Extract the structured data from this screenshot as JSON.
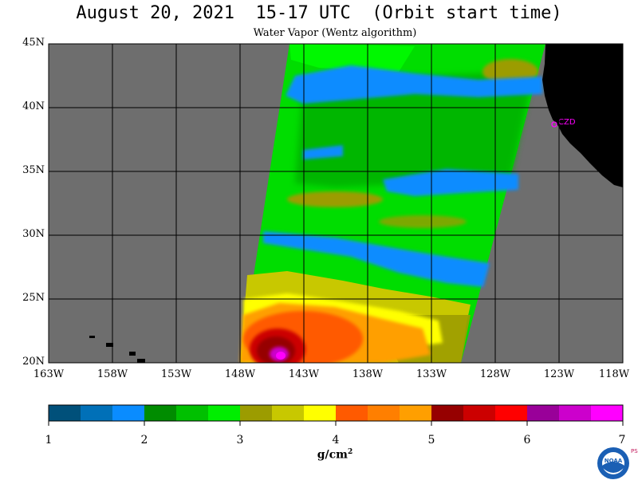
{
  "header": {
    "title": "August 20, 2021  15-17 UTC  (Orbit start time)",
    "subtitle": "Water Vapor (Wentz algorithm)"
  },
  "map": {
    "lat_labels": [
      "45N",
      "40N",
      "35N",
      "30N",
      "25N",
      "20N"
    ],
    "lon_labels": [
      "163W",
      "158W",
      "153W",
      "148W",
      "143W",
      "138W",
      "133W",
      "128W",
      "123W",
      "118W"
    ],
    "marker_label": "CZD",
    "colors": {
      "no_data": "#6e6e6e",
      "land": "#000000",
      "grid": "#000000",
      "marker": "#ff00ff"
    }
  },
  "colorbar": {
    "tick_labels": [
      "1",
      "2",
      "3",
      "4",
      "5",
      "6",
      "7"
    ],
    "units": "g/cm",
    "units_exponent": "2",
    "colors": [
      "#00507a",
      "#0070b8",
      "#0a8cff",
      "#008c00",
      "#00c000",
      "#00ee00",
      "#9c9c00",
      "#c8c800",
      "#ffff00",
      "#ff5a00",
      "#ff7f00",
      "#ff9f00",
      "#960000",
      "#cc0000",
      "#ff0000",
      "#990099",
      "#cc00cc",
      "#ff00ff"
    ]
  },
  "logo": {
    "org": "NOAA",
    "lab": "PSL"
  }
}
